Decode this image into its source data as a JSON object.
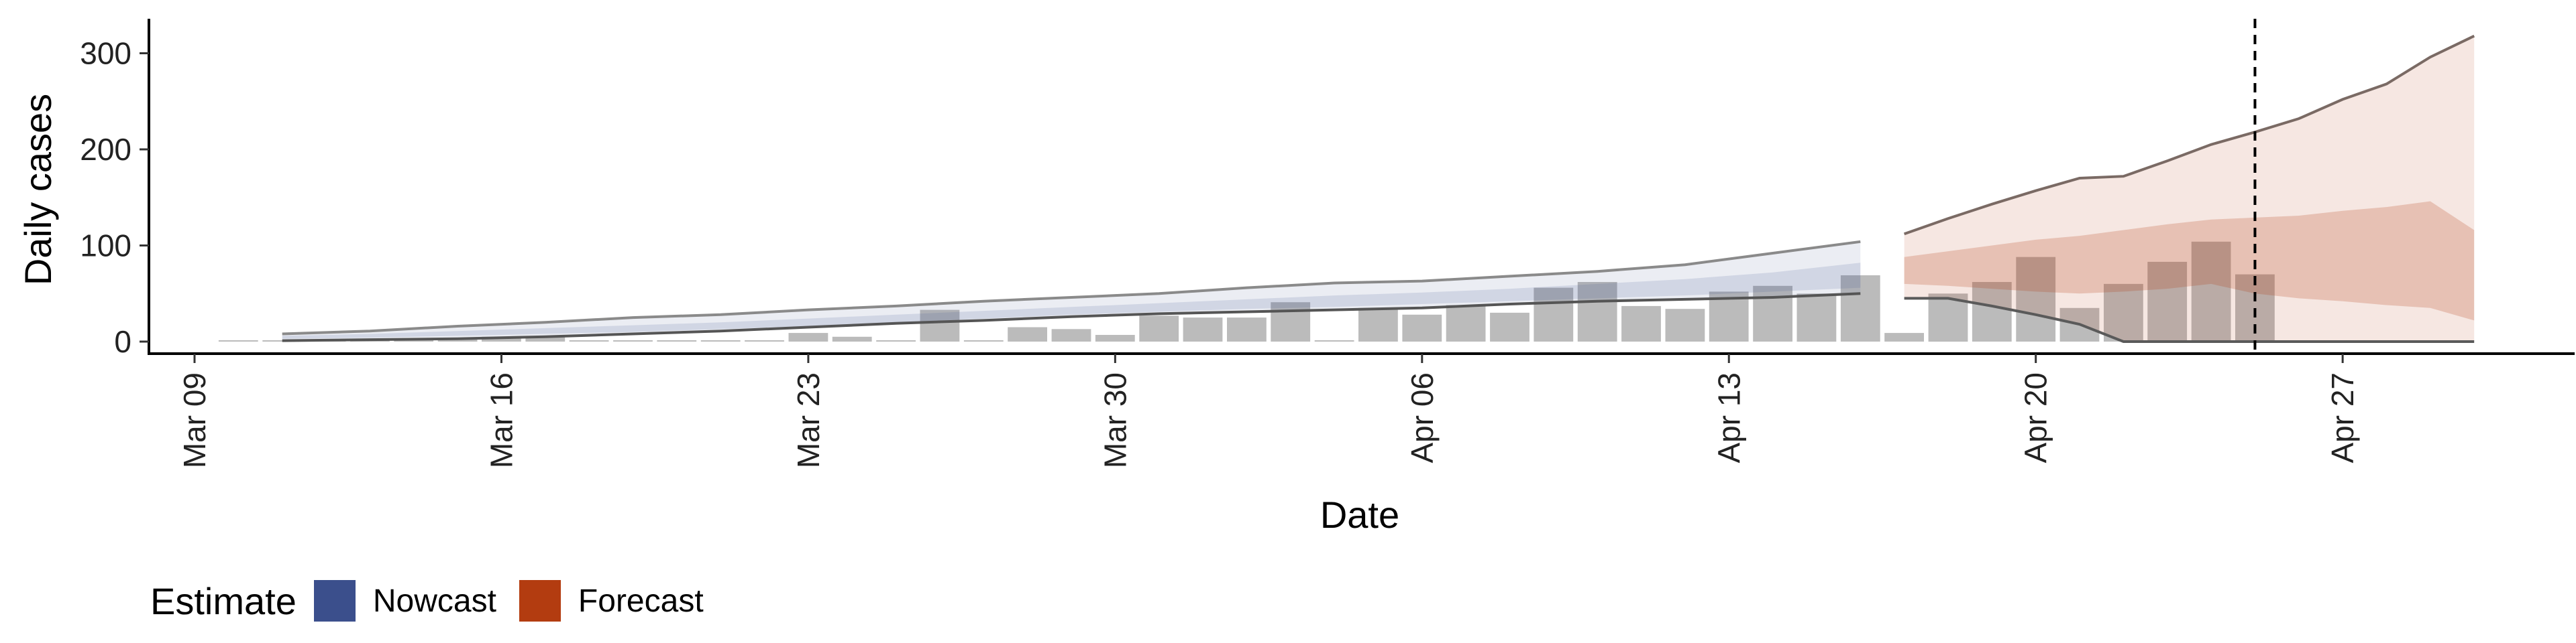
{
  "chart_data": {
    "type": "bar",
    "title": "",
    "xlabel": "Date",
    "ylabel": "Daily cases",
    "x_tick_labels": [
      "Mar 09",
      "Mar 16",
      "Mar 23",
      "Mar 30",
      "Apr 06",
      "Apr 13",
      "Apr 20",
      "Apr 27"
    ],
    "x_ticks": [
      "2020-03-09",
      "2020-03-16",
      "2020-03-23",
      "2020-03-30",
      "2020-04-06",
      "2020-04-13",
      "2020-04-20",
      "2020-04-27"
    ],
    "y_ticks": [
      0,
      100,
      200,
      300
    ],
    "ylim": [
      -15,
      335
    ],
    "xlim": [
      "2020-03-09",
      "2020-05-01"
    ],
    "grid": false,
    "legend": {
      "title": "Estimate",
      "position": "bottom-left",
      "items": [
        {
          "label": "Nowcast",
          "color": "#3b4f8c"
        },
        {
          "label": "Forecast",
          "color": "#b33c10"
        }
      ]
    },
    "reference_line": {
      "date": "2020-04-25",
      "style": "dashed"
    },
    "observed_cases": {
      "color": "#9e9e9e",
      "dates": [
        "2020-03-10",
        "2020-03-11",
        "2020-03-12",
        "2020-03-13",
        "2020-03-14",
        "2020-03-15",
        "2020-03-16",
        "2020-03-17",
        "2020-03-18",
        "2020-03-19",
        "2020-03-20",
        "2020-03-21",
        "2020-03-22",
        "2020-03-23",
        "2020-03-24",
        "2020-03-25",
        "2020-03-26",
        "2020-03-27",
        "2020-03-28",
        "2020-03-29",
        "2020-03-30",
        "2020-03-31",
        "2020-04-01",
        "2020-04-02",
        "2020-04-03",
        "2020-04-04",
        "2020-04-05",
        "2020-04-06",
        "2020-04-07",
        "2020-04-08",
        "2020-04-09",
        "2020-04-10",
        "2020-04-11",
        "2020-04-12",
        "2020-04-13",
        "2020-04-14",
        "2020-04-15",
        "2020-04-16",
        "2020-04-17",
        "2020-04-18",
        "2020-04-19",
        "2020-04-20",
        "2020-04-21",
        "2020-04-22",
        "2020-04-23",
        "2020-04-24",
        "2020-04-25"
      ],
      "values": [
        1,
        1,
        1,
        1,
        1,
        4,
        5,
        5,
        1,
        0,
        0,
        1,
        0,
        9,
        5,
        1,
        33,
        0,
        15,
        13,
        7,
        27,
        25,
        25,
        41,
        0,
        35,
        28,
        38,
        30,
        56,
        62,
        37,
        34,
        52,
        58,
        50,
        69,
        9,
        50,
        62,
        88,
        35,
        60,
        83,
        104,
        70
      ]
    },
    "series": [
      {
        "name": "Nowcast",
        "color": "#3b4f8c",
        "dates": [
          "2020-03-11",
          "2020-03-13",
          "2020-03-15",
          "2020-03-17",
          "2020-03-19",
          "2020-03-21",
          "2020-03-23",
          "2020-03-25",
          "2020-03-27",
          "2020-03-29",
          "2020-03-31",
          "2020-04-02",
          "2020-04-04",
          "2020-04-06",
          "2020-04-08",
          "2020-04-10",
          "2020-04-12",
          "2020-04-14",
          "2020-04-16"
        ],
        "upper_90": [
          8,
          11,
          16,
          20,
          25,
          28,
          33,
          37,
          42,
          46,
          50,
          56,
          61,
          63,
          68,
          73,
          80,
          92,
          104
        ],
        "upper_50": [
          6,
          8,
          11,
          14,
          17,
          20,
          24,
          28,
          32,
          36,
          40,
          44,
          48,
          51,
          55,
          60,
          65,
          72,
          82
        ],
        "median": [
          4,
          6,
          8,
          10,
          13,
          16,
          20,
          24,
          28,
          32,
          36,
          39,
          42,
          45,
          48,
          52,
          56,
          60,
          66
        ],
        "lower_50": [
          3,
          4,
          6,
          8,
          10,
          13,
          16,
          20,
          24,
          28,
          31,
          34,
          36,
          39,
          42,
          45,
          48,
          52,
          56
        ],
        "lower_90": [
          1,
          2,
          3,
          5,
          8,
          11,
          15,
          19,
          22,
          26,
          29,
          31,
          33,
          35,
          39,
          42,
          44,
          46,
          50
        ]
      },
      {
        "name": "Forecast",
        "color": "#b33c10",
        "dates": [
          "2020-04-17",
          "2020-04-18",
          "2020-04-19",
          "2020-04-20",
          "2020-04-21",
          "2020-04-22",
          "2020-04-23",
          "2020-04-24",
          "2020-04-25",
          "2020-04-26",
          "2020-04-27",
          "2020-04-28",
          "2020-04-29",
          "2020-04-30"
        ],
        "upper_90": [
          112,
          128,
          143,
          157,
          170,
          172,
          188,
          205,
          218,
          232,
          252,
          268,
          296,
          318
        ],
        "upper_50": [
          88,
          94,
          100,
          106,
          110,
          116,
          122,
          127,
          129,
          131,
          136,
          140,
          146,
          116
        ],
        "median": [
          70,
          72,
          74,
          76,
          78,
          80,
          82,
          84,
          86,
          86,
          86,
          86,
          86,
          86
        ],
        "lower_50": [
          60,
          58,
          55,
          52,
          50,
          52,
          55,
          60,
          50,
          45,
          42,
          38,
          35,
          22
        ],
        "lower_90": [
          45,
          45,
          37,
          28,
          18,
          0,
          0,
          0,
          0,
          0,
          0,
          0,
          0,
          0
        ]
      }
    ]
  }
}
